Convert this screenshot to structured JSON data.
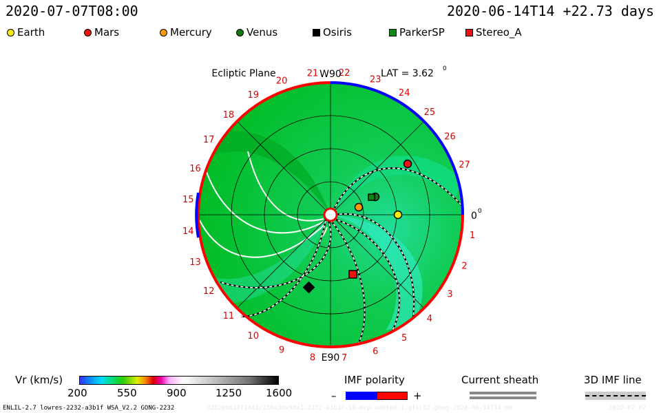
{
  "header": {
    "left_time": "2020-07-07T08:00",
    "right_time": "2020-06-14T14 +22.73 days"
  },
  "legend": [
    {
      "name": "Earth",
      "color": "#ffee00",
      "shape": "circle"
    },
    {
      "name": "Mars",
      "color": "#ee1111",
      "shape": "circle"
    },
    {
      "name": "Mercury",
      "color": "#ff9900",
      "shape": "circle"
    },
    {
      "name": "Venus",
      "color": "#117711",
      "shape": "circle"
    },
    {
      "name": "Osiris",
      "color": "#000000",
      "shape": "square"
    },
    {
      "name": "ParkerSP",
      "color": "#118811",
      "shape": "square"
    },
    {
      "name": "Stereo_A",
      "color": "#ee1111",
      "shape": "square"
    }
  ],
  "chart_data": {
    "type": "polar-heatmap",
    "plane_label": "Ecliptic Plane",
    "lat_label": "LAT = 3.62",
    "lat_unit": "0",
    "top_marker": "W90",
    "bottom_marker": "E90",
    "right_marker": "0",
    "right_marker_unit": "0",
    "carrington_ticks": [
      "1",
      "2",
      "3",
      "4",
      "5",
      "6",
      "7",
      "8",
      "9",
      "10",
      "11",
      "12",
      "13",
      "14",
      "15",
      "16",
      "17",
      "18",
      "19",
      "20",
      "21",
      "22",
      "23",
      "24",
      "25",
      "26",
      "27"
    ],
    "colorbar": {
      "label": "Vr (km/s)",
      "ticks": [
        "200",
        "550",
        "900",
        "1250",
        "1600"
      ],
      "range": [
        200,
        1600
      ]
    },
    "imf_polarity": {
      "label": "IMF polarity",
      "minus": "–",
      "plus": "+",
      "colors": [
        "#0000ff",
        "#ff0000"
      ]
    },
    "current_sheath": {
      "label": "Current sheath"
    },
    "imf_line": {
      "label": "3D IMF line"
    }
  },
  "footer": {
    "left": "ENLIL-2.7 lowres-2232-a3b1f WSA_V2.2 GONG-2232",
    "mid": "d20200614T1401/256x30x90x1.2232-a3b1f-16-mcp-unmted-1.gfsc52.gong-2020-06-14T14:00",
    "right": "2020-07-07"
  }
}
